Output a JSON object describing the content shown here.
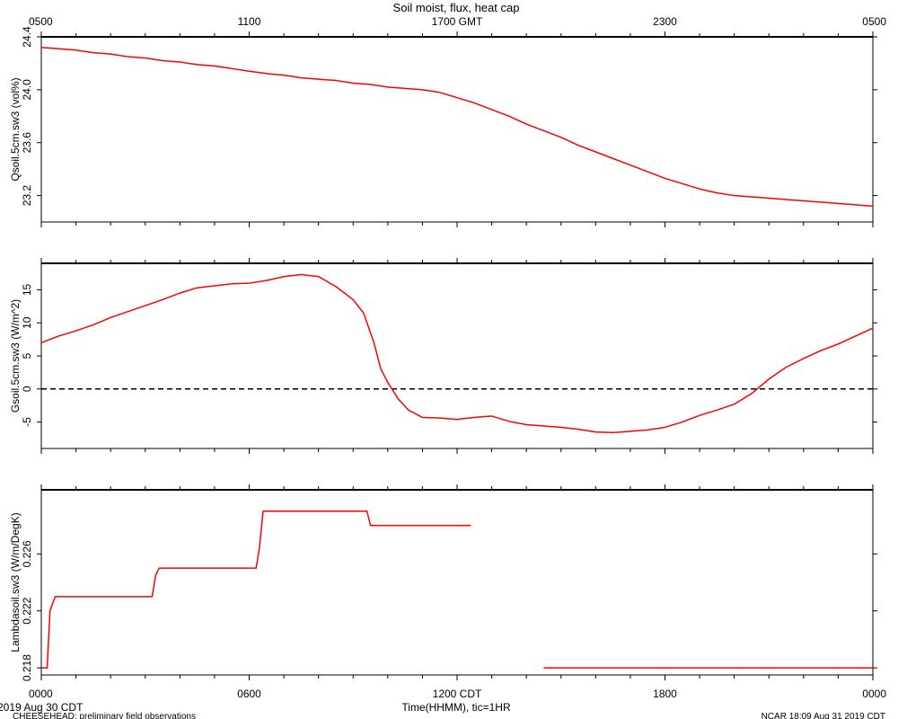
{
  "title": "Soil moist, flux, heat cap",
  "footer": {
    "left_date": "2019 Aug 30 CDT",
    "left_note": "CHEESEHEAD: preliminary field observations",
    "right_note": "NCAR 18:09 Aug 31 2019 CDT"
  },
  "x_axis": {
    "label": "Time(HHMM), tic=1HR",
    "range_hours": [
      0,
      24
    ],
    "bottom_ticks": [
      {
        "hour": 0,
        "label": "0000"
      },
      {
        "hour": 6,
        "label": "0600"
      },
      {
        "hour": 12,
        "label": "1200 CDT"
      },
      {
        "hour": 18,
        "label": "1800"
      },
      {
        "hour": 24,
        "label": "0000"
      }
    ],
    "top_ticks": [
      {
        "hour": 0,
        "label": "0500"
      },
      {
        "hour": 6,
        "label": "1100"
      },
      {
        "hour": 12,
        "label": "1700 GMT"
      },
      {
        "hour": 18,
        "label": "2300"
      },
      {
        "hour": 24,
        "label": "0500"
      }
    ]
  },
  "colors": {
    "series": "#ff0000",
    "axis": "#000000",
    "zero_line": "#000000"
  },
  "chart_data": [
    {
      "type": "line",
      "ylabel": "Qsoil.5cm.sw3 (vol%)",
      "ylim": [
        23.0,
        24.4
      ],
      "yticks": [
        23.2,
        23.6,
        24.0,
        24.4
      ],
      "ytick_labels": [
        "23.2",
        "23.6",
        "24.0",
        "24.4"
      ],
      "series": [
        {
          "x": [
            0,
            0.5,
            1,
            1.5,
            2,
            2.5,
            3,
            3.5,
            4,
            4.5,
            5,
            5.5,
            6,
            6.3,
            6.6,
            7,
            7.5,
            8,
            8.5,
            9,
            9.5,
            10,
            10.5,
            11,
            11.5,
            12,
            12.5,
            13,
            13.5,
            14,
            14.5,
            15,
            15.5,
            16,
            16.5,
            17,
            17.5,
            18,
            18.5,
            19,
            19.5,
            20,
            20.5,
            21,
            21.5,
            22,
            22.5,
            23,
            23.5,
            24
          ],
          "y": [
            24.32,
            24.31,
            24.3,
            24.28,
            24.27,
            24.25,
            24.24,
            24.22,
            24.21,
            24.19,
            24.18,
            24.16,
            24.14,
            24.13,
            24.12,
            24.11,
            24.09,
            24.08,
            24.07,
            24.05,
            24.04,
            24.02,
            24.01,
            24.0,
            23.98,
            23.94,
            23.9,
            23.85,
            23.8,
            23.74,
            23.69,
            23.64,
            23.58,
            23.53,
            23.48,
            23.43,
            23.38,
            23.33,
            23.29,
            23.25,
            23.22,
            23.2,
            23.19,
            23.18,
            23.17,
            23.16,
            23.15,
            23.14,
            23.13,
            23.12
          ]
        }
      ]
    },
    {
      "type": "line",
      "ylabel": "Gsoil.5cm.sw3 (W/m^2)",
      "ylim": [
        -9,
        19
      ],
      "yticks": [
        -5,
        0,
        5,
        10,
        15
      ],
      "ytick_labels": [
        "-5",
        "0",
        "5",
        "10",
        "15"
      ],
      "reference_line": {
        "y": 0,
        "style": "dashed"
      },
      "series": [
        {
          "x": [
            0,
            0.5,
            1,
            1.5,
            2,
            2.5,
            3,
            3.5,
            4,
            4.5,
            5,
            5.5,
            6,
            6.5,
            7,
            7.5,
            8,
            8.5,
            9,
            9.3,
            9.6,
            9.8,
            10,
            10.3,
            10.6,
            11,
            11.5,
            12,
            12.5,
            13,
            13.5,
            14,
            14.5,
            15,
            15.5,
            16,
            16.5,
            17,
            17.5,
            18,
            18.5,
            19,
            19.5,
            20,
            20.5,
            21,
            21.5,
            22,
            22.5,
            23,
            23.5,
            24
          ],
          "y": [
            7.0,
            8.0,
            8.8,
            9.7,
            10.8,
            11.7,
            12.6,
            13.5,
            14.5,
            15.3,
            15.6,
            15.9,
            16.0,
            16.4,
            17.0,
            17.3,
            17.0,
            15.5,
            13.5,
            11.5,
            7.0,
            3.0,
            1.0,
            -1.5,
            -3.2,
            -4.3,
            -4.4,
            -4.6,
            -4.3,
            -4.1,
            -4.9,
            -5.4,
            -5.6,
            -5.8,
            -6.1,
            -6.5,
            -6.6,
            -6.4,
            -6.2,
            -5.8,
            -5.0,
            -4.0,
            -3.2,
            -2.3,
            -0.7,
            1.5,
            3.3,
            4.6,
            5.8,
            6.8,
            8.0,
            9.2
          ]
        }
      ]
    },
    {
      "type": "line",
      "ylabel": "Lambdasoil.sw3 (W/m/DegK)",
      "ylim": [
        0.2175,
        0.2305
      ],
      "yticks": [
        0.218,
        0.222,
        0.226
      ],
      "ytick_labels": [
        "0.218",
        "0.222",
        "0.226"
      ],
      "series": [
        {
          "x": [
            0,
            0.17,
            0.25,
            0.4,
            3.2,
            3.3,
            3.4,
            6.2,
            6.3,
            6.4,
            9.4,
            9.5,
            12.4
          ],
          "y": [
            0.218,
            0.218,
            0.222,
            0.223,
            0.223,
            0.2245,
            0.225,
            0.225,
            0.2265,
            0.229,
            0.229,
            0.228,
            0.228
          ]
        },
        {
          "x": [
            14.5,
            24
          ],
          "y": [
            0.218,
            0.218
          ]
        }
      ]
    }
  ]
}
